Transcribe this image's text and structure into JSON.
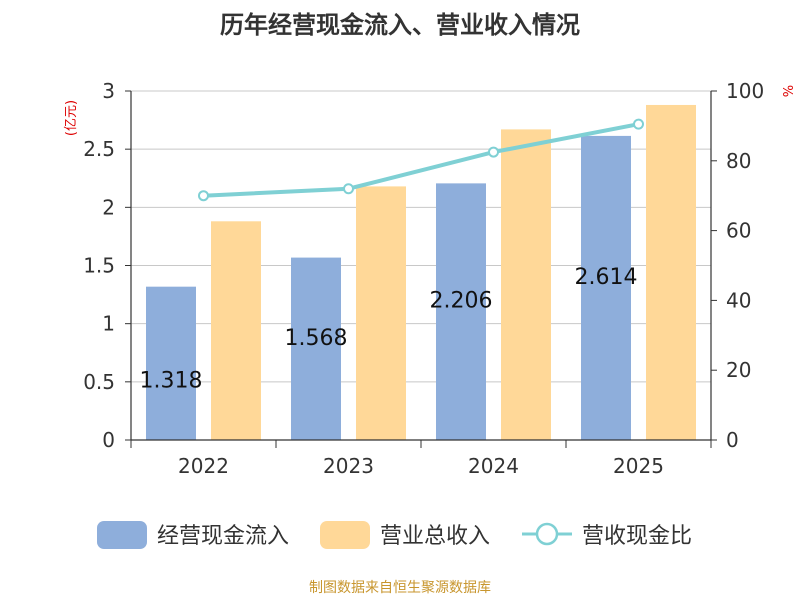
{
  "chart_data": {
    "type": "bar",
    "title": "历年经营现金流入、营业收入情况",
    "categories": [
      "2022",
      "2023",
      "2024",
      "2025"
    ],
    "series": [
      {
        "name": "经营现金流入",
        "kind": "bar",
        "axis": "left",
        "color": "#8EAEDB",
        "values": [
          1.318,
          1.568,
          2.206,
          2.614
        ],
        "labels": [
          "1.318",
          "1.568",
          "2.206",
          "2.614"
        ]
      },
      {
        "name": "营业总收入",
        "kind": "bar",
        "axis": "left",
        "color": "#FFD898",
        "values": [
          1.88,
          2.18,
          2.67,
          2.88
        ]
      },
      {
        "name": "营收现金比",
        "kind": "line",
        "axis": "right",
        "color": "#7FD0D4",
        "values": [
          70,
          72,
          82.5,
          90.5
        ]
      }
    ],
    "y_left": {
      "label": "(亿元)",
      "min": 0,
      "max": 3,
      "ticks": [
        0,
        0.5,
        1,
        1.5,
        2,
        2.5,
        3
      ],
      "tick_labels": [
        "0",
        "0.5",
        "1",
        "1.5",
        "2",
        "2.5",
        "3"
      ]
    },
    "y_right": {
      "label": "%",
      "min": 0,
      "max": 100,
      "ticks": [
        0,
        20,
        40,
        60,
        80,
        100
      ],
      "tick_labels": [
        "0",
        "20",
        "40",
        "60",
        "80",
        "100"
      ]
    },
    "grid": true,
    "legend_position": "bottom"
  },
  "source": "制图数据来自恒生聚源数据库"
}
